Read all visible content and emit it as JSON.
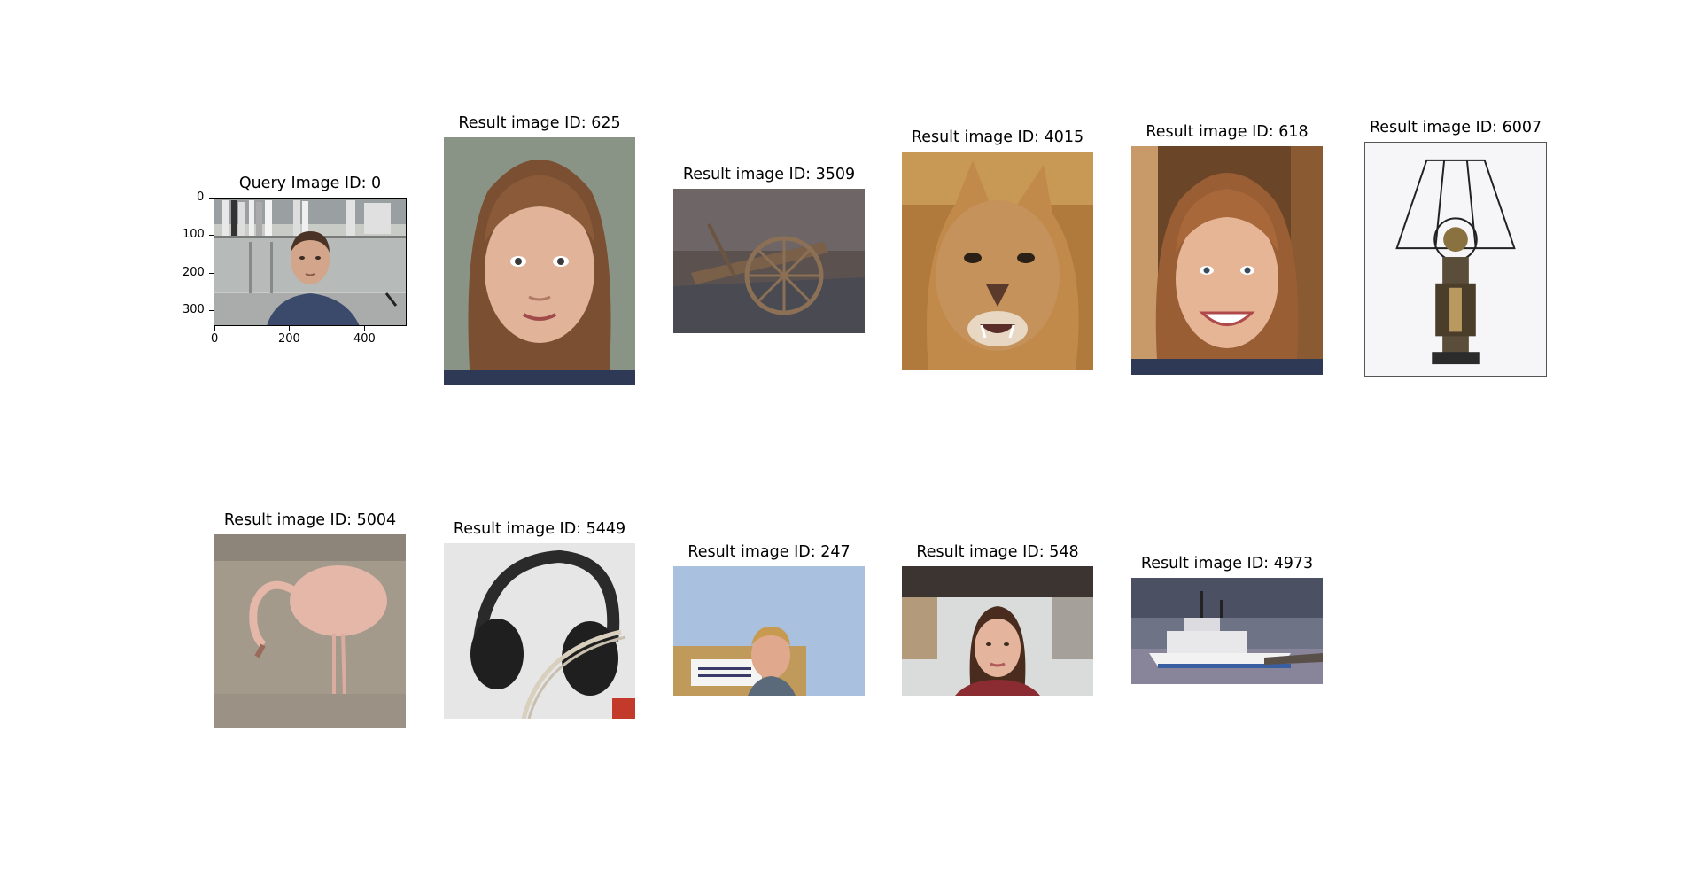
{
  "query": {
    "title": "Query Image ID: 0",
    "scene": "man-in-office",
    "x_ticks": [
      "0",
      "200",
      "400"
    ],
    "y_ticks": [
      "0",
      "100",
      "200",
      "300"
    ]
  },
  "results": [
    {
      "title": "Result image ID: 625",
      "scene": "woman-face-portrait"
    },
    {
      "title": "Result image ID: 3509",
      "scene": "wooden-cart"
    },
    {
      "title": "Result image ID: 4015",
      "scene": "cougar"
    },
    {
      "title": "Result image ID: 618",
      "scene": "smiling-woman"
    },
    {
      "title": "Result image ID: 6007",
      "scene": "art-deco-lamp"
    },
    {
      "title": "Result image ID: 5004",
      "scene": "flamingo"
    },
    {
      "title": "Result image ID: 5449",
      "scene": "headphones"
    },
    {
      "title": "Result image ID: 247",
      "scene": "man-with-sign"
    },
    {
      "title": "Result image ID: 548",
      "scene": "young-woman"
    },
    {
      "title": "Result image ID: 4973",
      "scene": "ferry-boat"
    }
  ],
  "colors": {
    "background": "#ffffff",
    "text": "#000000"
  }
}
